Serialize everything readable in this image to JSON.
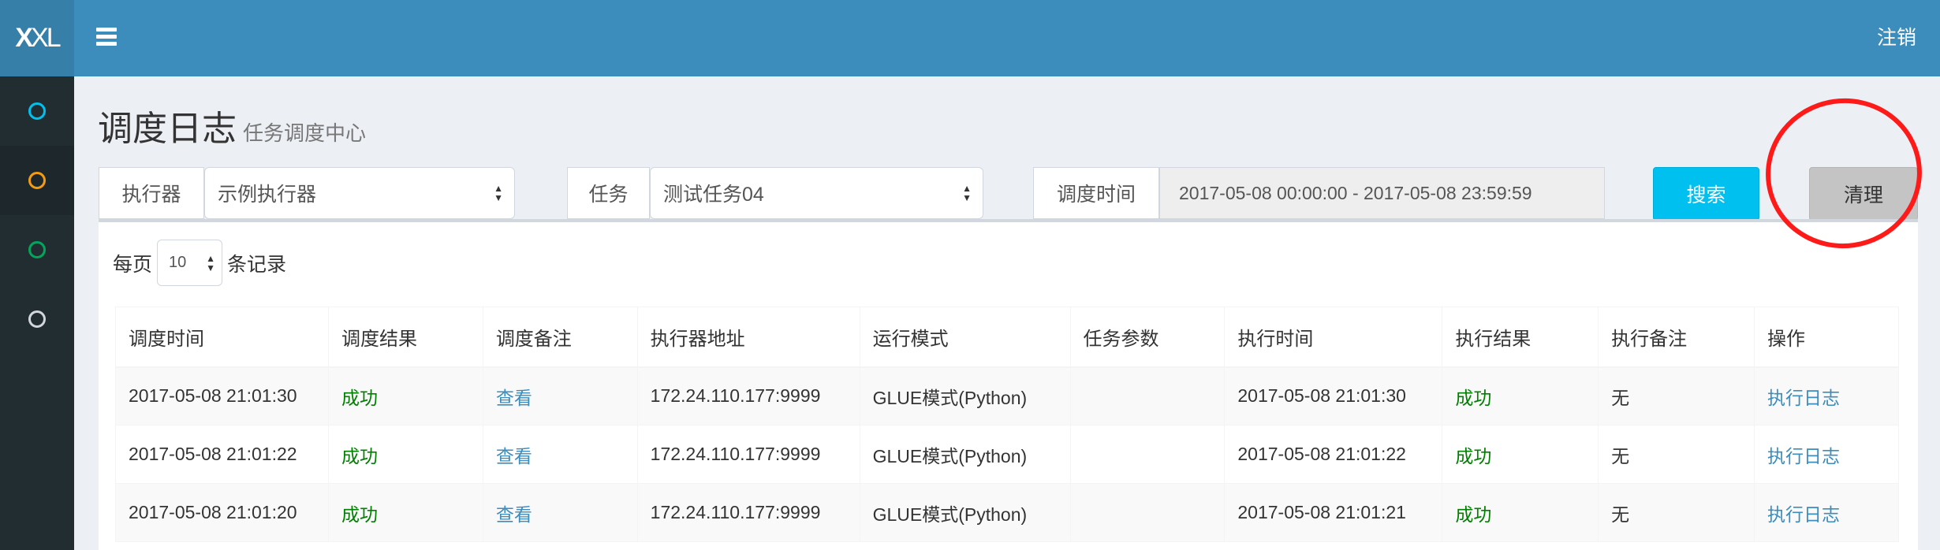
{
  "header": {
    "logo": "XXL",
    "logout": "注销"
  },
  "sidebar": {
    "items": [
      {
        "icon": "circle-icon",
        "color": "#00c0ef"
      },
      {
        "icon": "circle-icon",
        "color": "#f39c12"
      },
      {
        "icon": "circle-icon",
        "color": "#00a65a"
      },
      {
        "icon": "circle-icon",
        "color": "#d2d6de"
      }
    ]
  },
  "page": {
    "title": "调度日志",
    "subtitle": "任务调度中心"
  },
  "filters": {
    "executor_label": "执行器",
    "executor_value": "示例执行器",
    "job_label": "任务",
    "job_value": "测试任务04",
    "time_label": "调度时间",
    "time_value": "2017-05-08 00:00:00 - 2017-05-08 23:59:59",
    "search": "搜索",
    "clear": "清理"
  },
  "length": {
    "prefix": "每页",
    "value": "10",
    "suffix": "条记录"
  },
  "table": {
    "columns": [
      "调度时间",
      "调度结果",
      "调度备注",
      "执行器地址",
      "运行模式",
      "任务参数",
      "执行时间",
      "执行结果",
      "执行备注",
      "操作"
    ],
    "rows": [
      [
        "2017-05-08 21:01:30",
        "成功",
        "查看",
        "172.24.110.177:9999",
        "GLUE模式(Python)",
        "",
        "2017-05-08 21:01:30",
        "成功",
        "无",
        "执行日志"
      ],
      [
        "2017-05-08 21:01:22",
        "成功",
        "查看",
        "172.24.110.177:9999",
        "GLUE模式(Python)",
        "",
        "2017-05-08 21:01:22",
        "成功",
        "无",
        "执行日志"
      ],
      [
        "2017-05-08 21:01:20",
        "成功",
        "查看",
        "172.24.110.177:9999",
        "GLUE模式(Python)",
        "",
        "2017-05-08 21:01:21",
        "成功",
        "无",
        "执行日志"
      ]
    ]
  },
  "colors": {
    "header": "#3c8dbc",
    "search": "#00c0ef",
    "clear": "#c4c4c4",
    "success": "#008000",
    "link": "#3c8dbc",
    "annotation": "#ff1a1a"
  }
}
